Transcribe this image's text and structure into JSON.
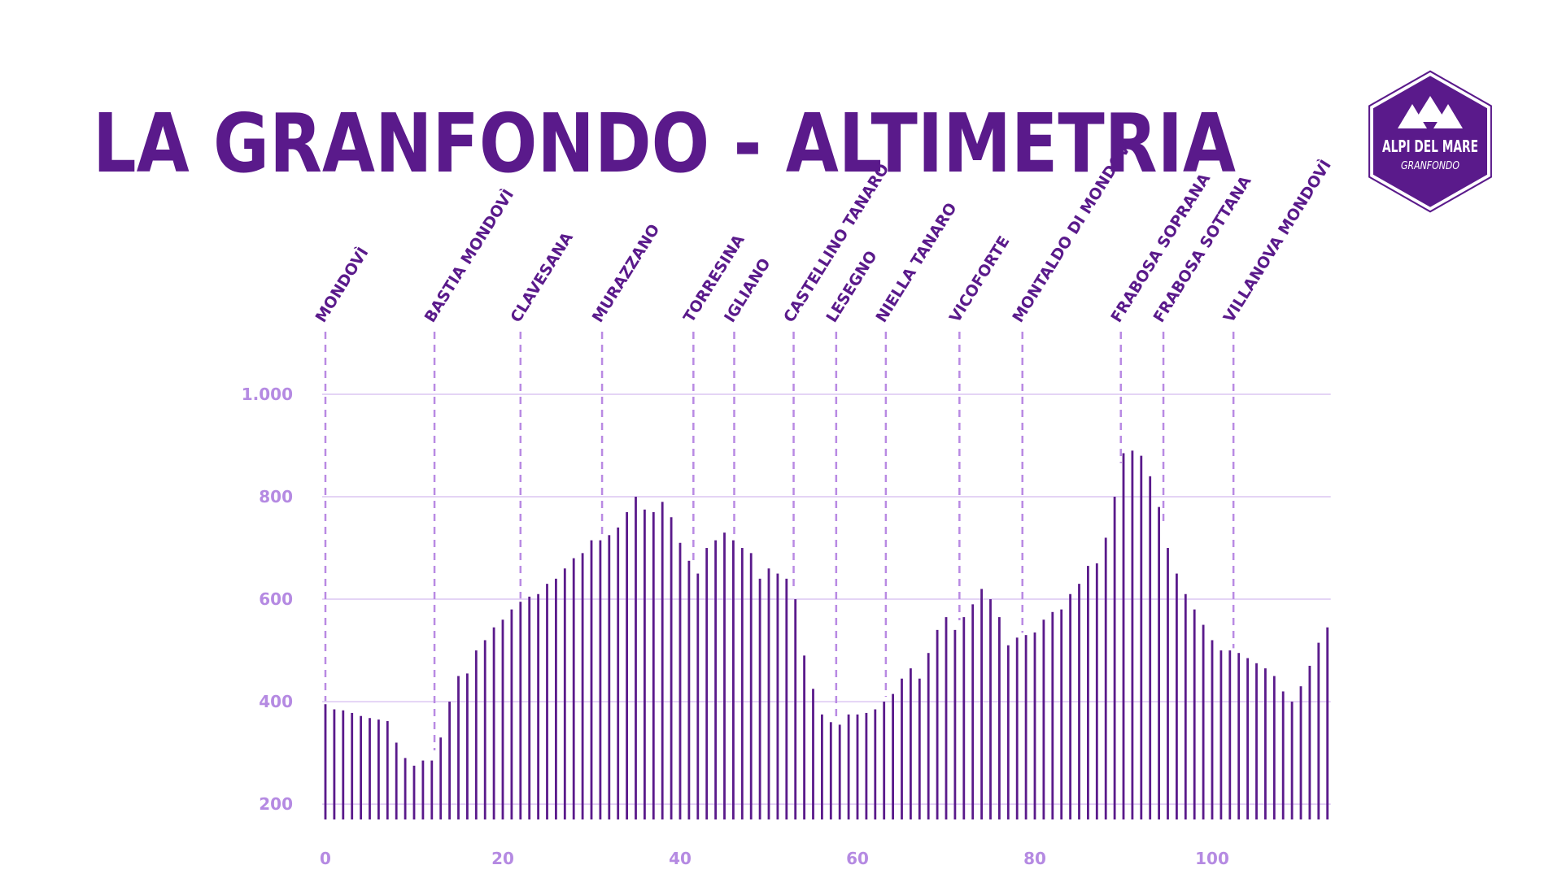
{
  "chart_data": {
    "type": "bar",
    "title": "LA GRANFONDO - ALTIMETRIA",
    "logo": {
      "line1": "ALPI DEL MARE",
      "line2": "GRANFONDO"
    },
    "x": [
      0,
      1,
      2,
      3,
      4,
      5,
      6,
      7,
      8,
      9,
      10,
      11,
      12,
      13,
      14,
      15,
      16,
      17,
      18,
      19,
      20,
      21,
      22,
      23,
      24,
      25,
      26,
      27,
      28,
      29,
      30,
      31,
      32,
      33,
      34,
      35,
      36,
      37,
      38,
      39,
      40,
      41,
      42,
      43,
      44,
      45,
      46,
      47,
      48,
      49,
      50,
      51,
      52,
      53,
      54,
      55,
      56,
      57,
      58,
      59,
      60,
      61,
      62,
      63,
      64,
      65,
      66,
      67,
      68,
      69,
      70,
      71,
      72,
      73,
      74,
      75,
      76,
      77,
      78,
      79,
      80,
      81,
      82,
      83,
      84,
      85,
      86,
      87,
      88,
      89,
      90,
      91,
      92,
      93,
      94,
      95,
      96,
      97,
      98,
      99,
      100,
      101,
      102,
      103,
      104,
      105,
      106,
      107,
      108,
      109,
      110,
      111,
      112,
      113
    ],
    "series": [
      {
        "color": "#5a1a8b",
        "values": [
          395,
          385,
          383,
          378,
          372,
          368,
          365,
          362,
          320,
          290,
          275,
          285,
          285,
          330,
          400,
          450,
          455,
          500,
          520,
          545,
          560,
          580,
          595,
          605,
          610,
          630,
          640,
          660,
          680,
          690,
          715,
          715,
          725,
          740,
          770,
          800,
          775,
          770,
          790,
          760,
          710,
          675,
          650,
          700,
          715,
          730,
          715,
          700,
          690,
          640,
          660,
          650,
          640,
          600,
          490,
          425,
          375,
          360,
          355,
          375,
          375,
          378,
          385,
          400,
          415,
          445,
          465,
          445,
          495,
          540,
          565,
          540,
          565,
          590,
          620,
          600,
          565,
          510,
          525,
          530,
          535,
          560,
          575,
          580,
          610,
          630,
          665,
          670,
          720,
          800,
          885,
          890,
          880,
          840,
          780,
          700,
          650,
          610,
          580,
          550,
          520,
          500,
          500,
          495,
          485,
          475,
          465,
          450,
          420,
          400,
          430,
          470,
          515,
          545
        ]
      }
    ],
    "markers": [
      {
        "label": "MONDOVÌ",
        "x": 0
      },
      {
        "label": "BASTIA MONDOVÌ",
        "x": 12.3
      },
      {
        "label": "CLAVESANA",
        "x": 22
      },
      {
        "label": "MURAZZANO",
        "x": 31.2
      },
      {
        "label": "TORRESINA",
        "x": 41.5
      },
      {
        "label": "IGLIANO",
        "x": 46.1
      },
      {
        "label": "CASTELLINO TANARO",
        "x": 52.8
      },
      {
        "label": "LESEGNO",
        "x": 57.6
      },
      {
        "label": "NIELLA TANARO",
        "x": 63.2
      },
      {
        "label": "VICOFORTE",
        "x": 71.5
      },
      {
        "label": "MONTALDO DI MONDOVÌ",
        "x": 78.6
      },
      {
        "label": "FRABOSA SOPRANA",
        "x": 89.7
      },
      {
        "label": "FRABOSA SOTTANA",
        "x": 94.5
      },
      {
        "label": "VILLANOVA MONDOVÌ",
        "x": 102.4
      }
    ],
    "xlim": [
      0,
      113
    ],
    "xticks": [
      0,
      20,
      40,
      60,
      80,
      100
    ],
    "ylim": [
      170,
      1000
    ],
    "yticks": [
      200,
      400,
      600,
      800,
      {
        "value": 1000,
        "label": "1.000"
      }
    ],
    "grid": true
  }
}
